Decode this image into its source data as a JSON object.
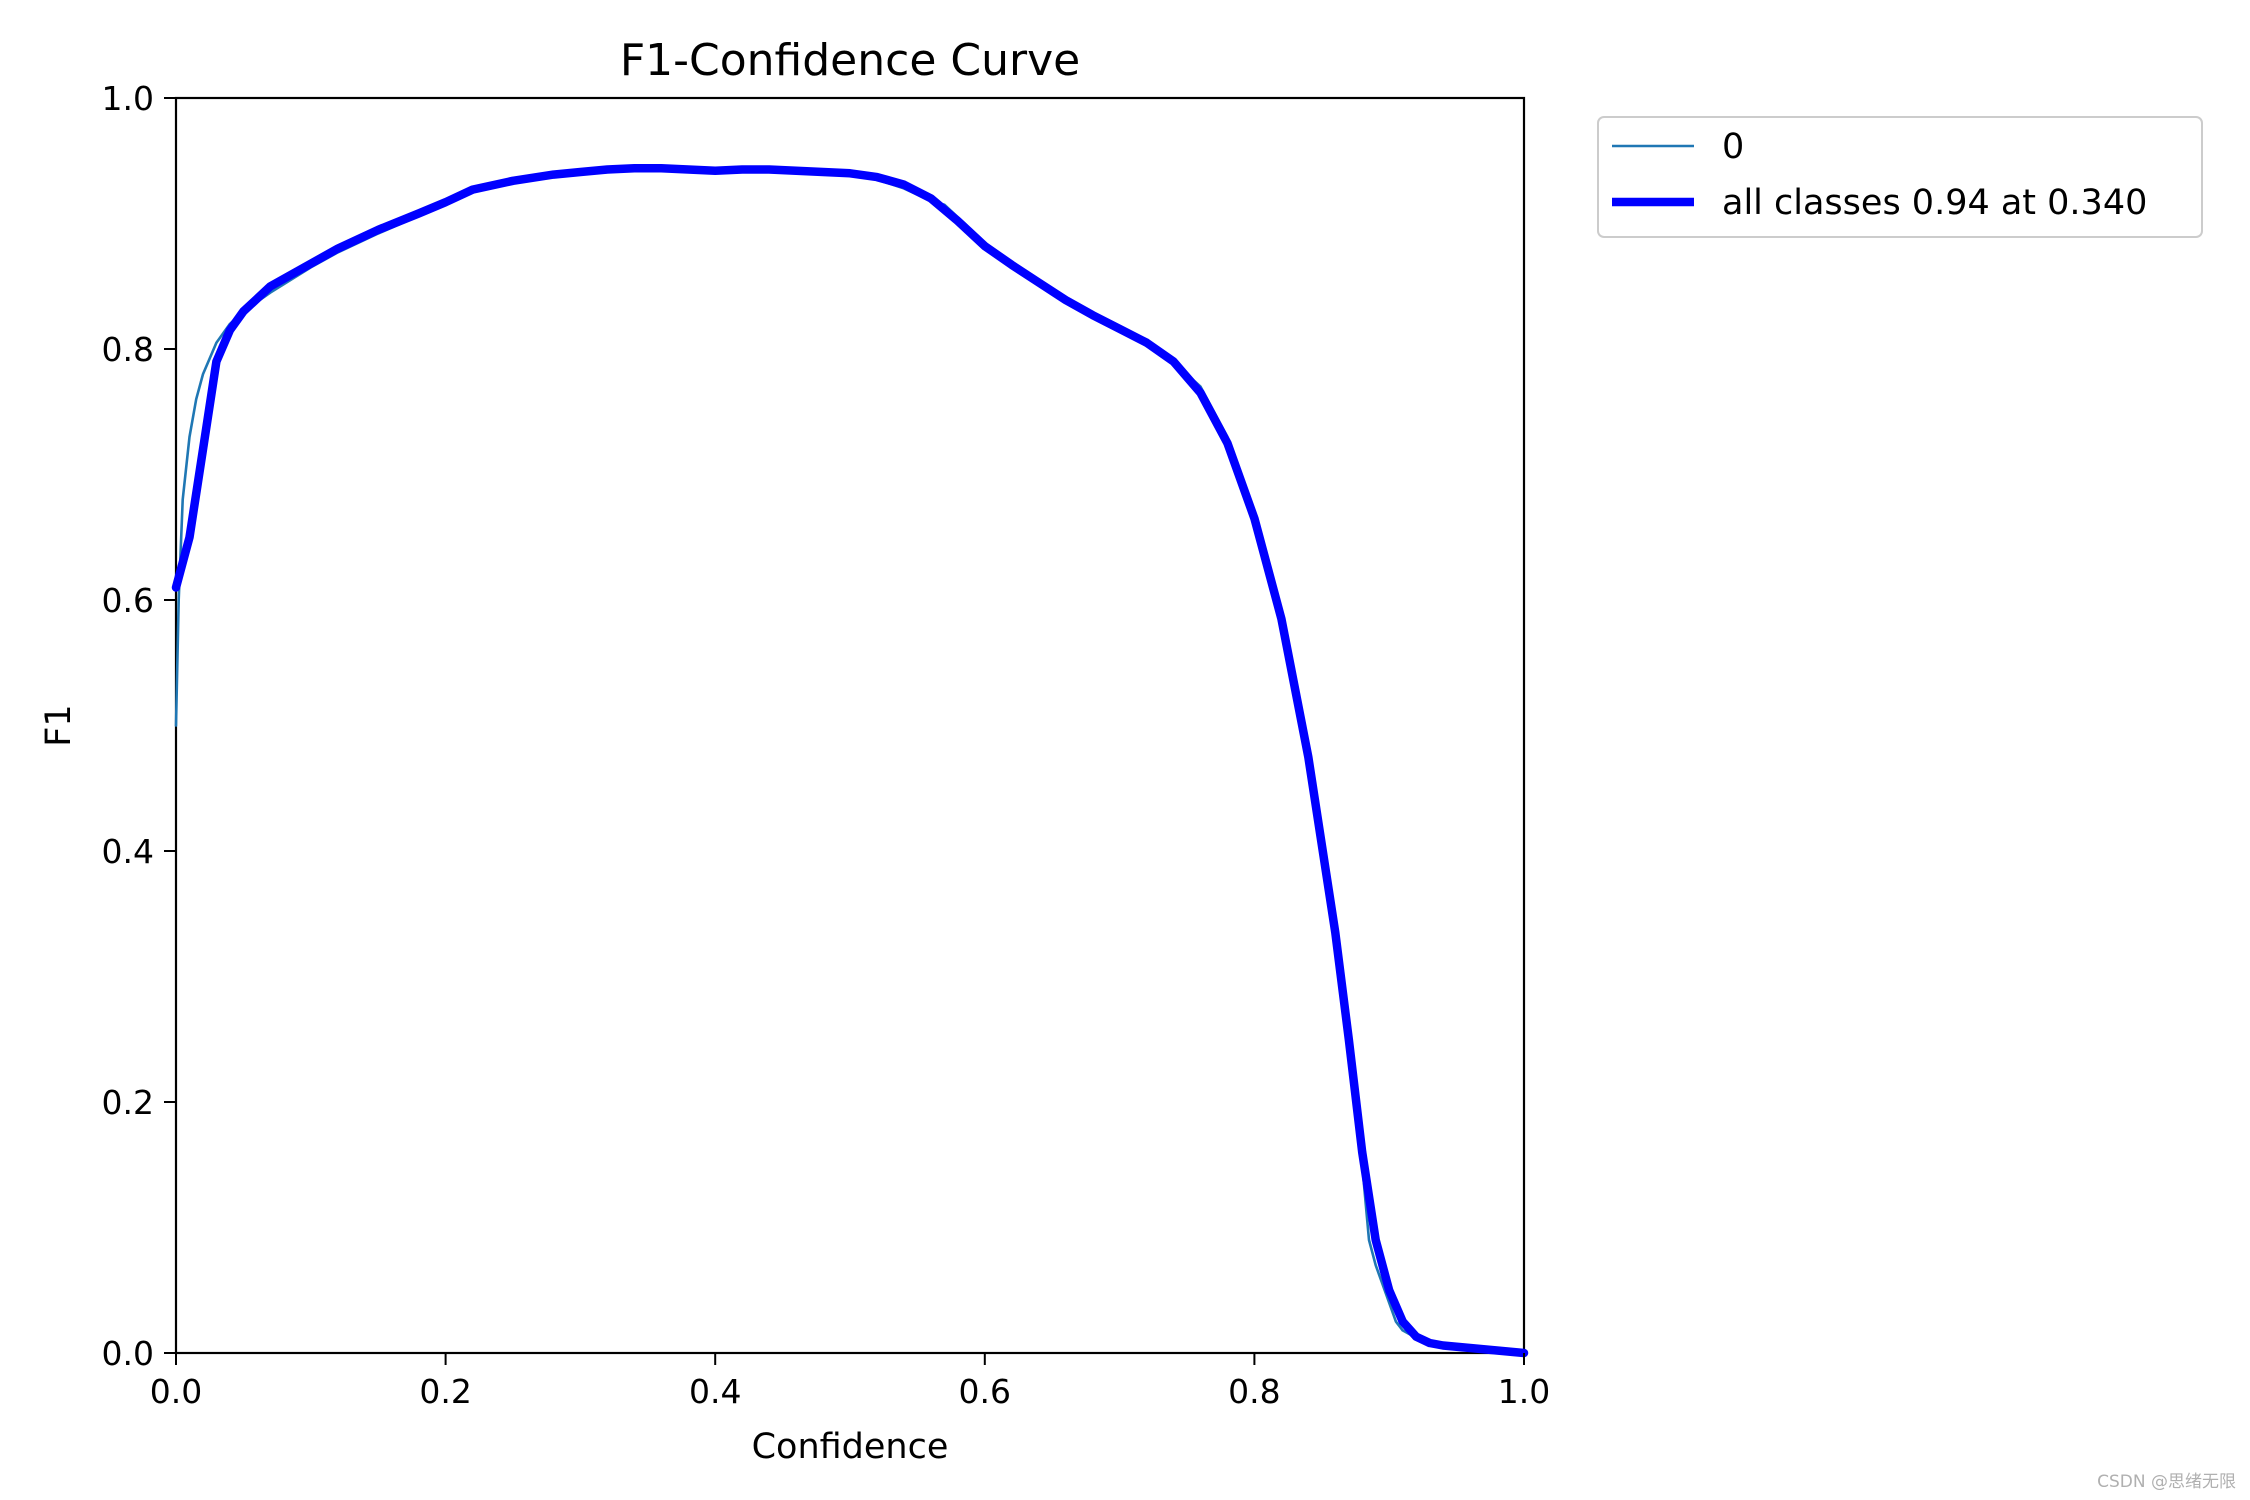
{
  "chart_data": {
    "type": "line",
    "title": "F1-Confidence Curve",
    "xlabel": "Confidence",
    "ylabel": "F1",
    "xlim": [
      0,
      1
    ],
    "ylim": [
      0,
      1
    ],
    "x_ticks": [
      "0.0",
      "0.2",
      "0.4",
      "0.6",
      "0.8",
      "1.0"
    ],
    "y_ticks": [
      "0.0",
      "0.2",
      "0.4",
      "0.6",
      "0.8",
      "1.0"
    ],
    "grid": false,
    "legend_position": "outside-top-right",
    "series": [
      {
        "name": "0",
        "color": "#1f77b4",
        "x": [
          0.0,
          0.002,
          0.005,
          0.01,
          0.015,
          0.02,
          0.03,
          0.04,
          0.05,
          0.07,
          0.1,
          0.12,
          0.15,
          0.18,
          0.2,
          0.22,
          0.25,
          0.28,
          0.3,
          0.32,
          0.34,
          0.36,
          0.38,
          0.4,
          0.42,
          0.44,
          0.46,
          0.48,
          0.5,
          0.52,
          0.54,
          0.56,
          0.57,
          0.58,
          0.6,
          0.62,
          0.64,
          0.66,
          0.68,
          0.7,
          0.72,
          0.74,
          0.755,
          0.76,
          0.78,
          0.8,
          0.82,
          0.84,
          0.86,
          0.87,
          0.88,
          0.885,
          0.89,
          0.9,
          0.905,
          0.91,
          0.92,
          0.93,
          0.94,
          0.96,
          0.98,
          1.0
        ],
        "y": [
          0.5,
          0.6,
          0.68,
          0.73,
          0.76,
          0.78,
          0.805,
          0.82,
          0.83,
          0.845,
          0.865,
          0.877,
          0.892,
          0.906,
          0.915,
          0.925,
          0.932,
          0.938,
          0.941,
          0.943,
          0.944,
          0.944,
          0.943,
          0.942,
          0.943,
          0.943,
          0.942,
          0.941,
          0.939,
          0.935,
          0.928,
          0.918,
          0.915,
          0.905,
          0.885,
          0.866,
          0.852,
          0.838,
          0.826,
          0.815,
          0.805,
          0.792,
          0.775,
          0.77,
          0.73,
          0.67,
          0.59,
          0.48,
          0.33,
          0.24,
          0.15,
          0.09,
          0.07,
          0.04,
          0.025,
          0.018,
          0.012,
          0.008,
          0.006,
          0.004,
          0.002,
          0.0
        ]
      },
      {
        "name": "all classes 0.94 at 0.340",
        "color": "#0000ff",
        "x": [
          0.0,
          0.01,
          0.02,
          0.03,
          0.04,
          0.05,
          0.07,
          0.1,
          0.12,
          0.15,
          0.18,
          0.2,
          0.22,
          0.25,
          0.28,
          0.3,
          0.32,
          0.34,
          0.36,
          0.38,
          0.4,
          0.42,
          0.44,
          0.46,
          0.48,
          0.5,
          0.52,
          0.54,
          0.56,
          0.58,
          0.6,
          0.62,
          0.64,
          0.66,
          0.68,
          0.7,
          0.72,
          0.74,
          0.76,
          0.78,
          0.8,
          0.82,
          0.84,
          0.86,
          0.87,
          0.88,
          0.89,
          0.9,
          0.91,
          0.92,
          0.93,
          0.94,
          0.96,
          0.98,
          1.0
        ],
        "y": [
          0.61,
          0.65,
          0.72,
          0.79,
          0.815,
          0.83,
          0.85,
          0.868,
          0.88,
          0.895,
          0.908,
          0.917,
          0.927,
          0.934,
          0.939,
          0.941,
          0.943,
          0.944,
          0.944,
          0.943,
          0.942,
          0.943,
          0.943,
          0.942,
          0.941,
          0.94,
          0.937,
          0.931,
          0.92,
          0.902,
          0.882,
          0.867,
          0.853,
          0.839,
          0.827,
          0.816,
          0.805,
          0.79,
          0.765,
          0.725,
          0.665,
          0.585,
          0.475,
          0.335,
          0.25,
          0.16,
          0.09,
          0.05,
          0.025,
          0.013,
          0.008,
          0.006,
          0.004,
          0.002,
          0.0
        ]
      }
    ]
  },
  "watermark": "CSDN @思绪无限"
}
